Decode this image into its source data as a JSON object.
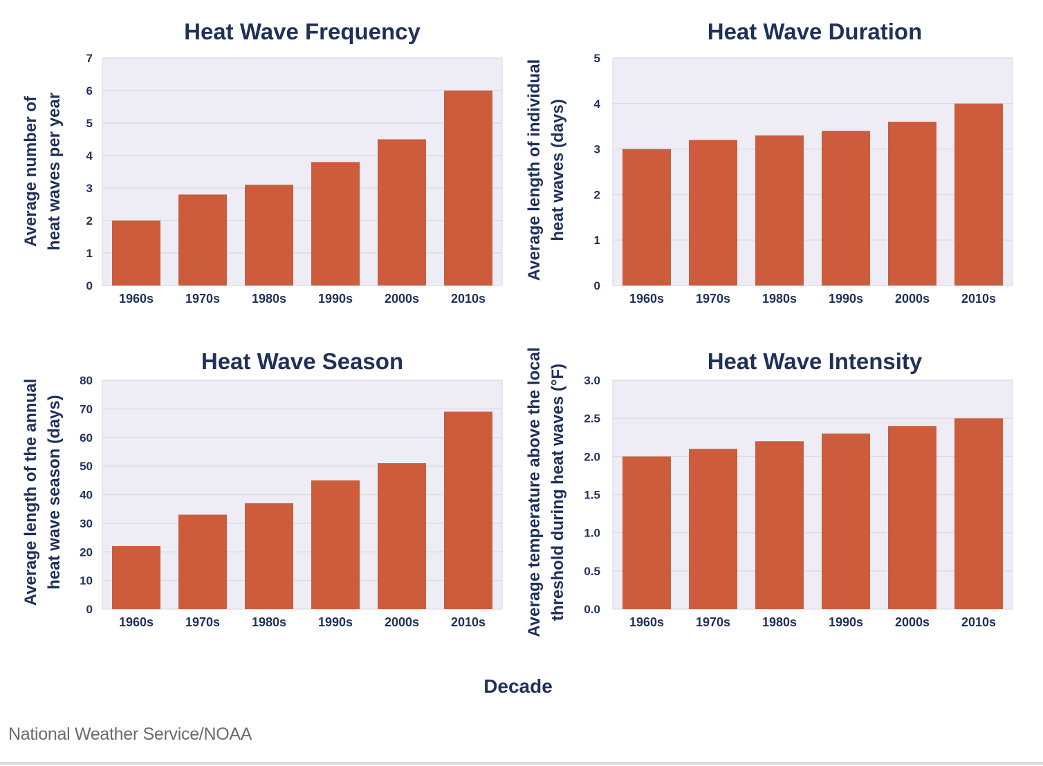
{
  "figure": {
    "shared_xlabel": "Decade",
    "source": "National Weather Service/NOAA",
    "colors": {
      "bar": "#CC5C3B",
      "plot_bg": "#EEEDF5",
      "grid": "#DCDBE6",
      "text": "#1F3059"
    }
  },
  "chart_data": [
    {
      "type": "bar",
      "title": "Heat Wave Frequency",
      "ylabel_lines": [
        "Average number of",
        "heat waves per year"
      ],
      "xlabel": "Decade",
      "categories": [
        "1960s",
        "1970s",
        "1980s",
        "1990s",
        "2000s",
        "2010s"
      ],
      "values": [
        2.0,
        2.8,
        3.1,
        3.8,
        4.5,
        6.0
      ],
      "ylim": [
        0,
        7
      ],
      "yticks": [
        "0",
        "1",
        "2",
        "3",
        "4",
        "5",
        "6",
        "7"
      ],
      "ytick_values": [
        0,
        1,
        2,
        3,
        4,
        5,
        6,
        7
      ],
      "grid": true,
      "legend": "none"
    },
    {
      "type": "bar",
      "title": "Heat Wave Duration",
      "ylabel_lines": [
        "Average length of individual",
        "heat waves (days)"
      ],
      "xlabel": "Decade",
      "categories": [
        "1960s",
        "1970s",
        "1980s",
        "1990s",
        "2000s",
        "2010s"
      ],
      "values": [
        3.0,
        3.2,
        3.3,
        3.4,
        3.6,
        4.0
      ],
      "ylim": [
        0,
        5
      ],
      "yticks": [
        "0",
        "1",
        "2",
        "3",
        "4",
        "5"
      ],
      "ytick_values": [
        0,
        1,
        2,
        3,
        4,
        5
      ],
      "grid": true,
      "legend": "none"
    },
    {
      "type": "bar",
      "title": "Heat Wave Season",
      "ylabel_lines": [
        "Average length of the annual",
        "heat wave season (days)"
      ],
      "xlabel": "Decade",
      "categories": [
        "1960s",
        "1970s",
        "1980s",
        "1990s",
        "2000s",
        "2010s"
      ],
      "values": [
        22,
        33,
        37,
        45,
        51,
        69
      ],
      "ylim": [
        0,
        80
      ],
      "yticks": [
        "0",
        "10",
        "20",
        "30",
        "40",
        "50",
        "60",
        "70",
        "80"
      ],
      "ytick_values": [
        0,
        10,
        20,
        30,
        40,
        50,
        60,
        70,
        80
      ],
      "grid": true,
      "legend": "none"
    },
    {
      "type": "bar",
      "title": "Heat Wave Intensity",
      "ylabel_lines": [
        "Average temperature above the local",
        "threshold during heat waves (°F)"
      ],
      "xlabel": "Decade",
      "categories": [
        "1960s",
        "1970s",
        "1980s",
        "1990s",
        "2000s",
        "2010s"
      ],
      "values": [
        2.0,
        2.1,
        2.2,
        2.3,
        2.4,
        2.5
      ],
      "ylim": [
        0,
        3.0
      ],
      "yticks": [
        "0.0",
        "0.5",
        "1.0",
        "1.5",
        "2.0",
        "2.5",
        "3.0"
      ],
      "ytick_values": [
        0,
        0.5,
        1.0,
        1.5,
        2.0,
        2.5,
        3.0
      ],
      "grid": true,
      "legend": "none"
    }
  ]
}
